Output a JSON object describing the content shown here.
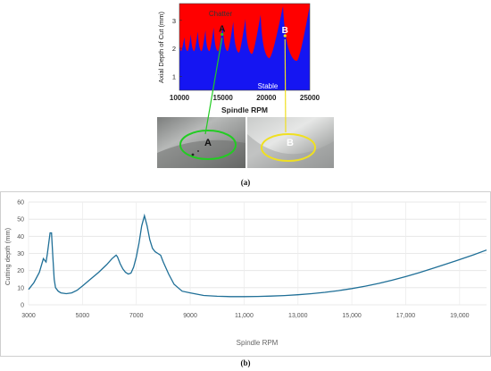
{
  "panel_a": {
    "caption": "(a)",
    "photo_labels": [
      "A",
      "B"
    ],
    "chart": {
      "type": "area",
      "xlabel": "Spindle RPM",
      "ylabel": "Axial Depth of Cut (mm)",
      "xlim": [
        10000,
        25000
      ],
      "ylim": [
        0.5,
        3.6
      ],
      "x_ticks": [
        "10000",
        "15000",
        "20000",
        "25000"
      ],
      "x_tick_values": [
        10000,
        15000,
        20000,
        25000
      ],
      "y_ticks": [
        "1",
        "2",
        "3"
      ],
      "y_tick_values": [
        1,
        2,
        3
      ],
      "region_labels": {
        "upper": "Chatter",
        "lower": "Stable"
      },
      "colors": {
        "chatter": "#ff0000",
        "stable": "#1515f2"
      },
      "point_labels": [
        "A",
        "B"
      ],
      "points": [
        {
          "label": "A",
          "x": 14900,
          "y": 2.5,
          "color": "#22cc22"
        },
        {
          "label": "B",
          "x": 22150,
          "y": 2.45,
          "color": "#f0e020"
        }
      ],
      "lobe_minima_rpm": [
        10200,
        10950,
        11700,
        12550,
        13450,
        14450,
        15550,
        16850,
        18350,
        20350,
        23500
      ],
      "lobe_minima_depth": [
        1.9,
        1.9,
        1.9,
        1.9,
        1.9,
        1.9,
        1.9,
        1.85,
        1.8,
        1.65,
        1.55
      ],
      "lobe_peak_depth": [
        2.4,
        2.5,
        2.6,
        2.65,
        2.75,
        2.85,
        2.95,
        3.05,
        3.2,
        3.5,
        3.5
      ]
    }
  },
  "panel_b": {
    "caption": "(b)",
    "chart": {
      "type": "line",
      "xlabel": "Spindle RPM",
      "ylabel": "Cutting depth (mm)",
      "xlim": [
        3000,
        20000
      ],
      "ylim": [
        0,
        60
      ],
      "x_ticks": [
        "3000",
        "5000",
        "7000",
        "9000",
        "11,000",
        "13,000",
        "15,000",
        "17,000",
        "19,000"
      ],
      "x_tick_values": [
        3000,
        5000,
        7000,
        9000,
        11000,
        13000,
        15000,
        17000,
        19000
      ],
      "y_ticks": [
        "0",
        "10",
        "20",
        "30",
        "40",
        "50",
        "60"
      ],
      "y_tick_values": [
        0,
        10,
        20,
        30,
        40,
        50,
        60
      ],
      "grid": true,
      "color": "#1f6f97",
      "x": [
        3000,
        3200,
        3400,
        3550,
        3650,
        3700,
        3800,
        3850,
        3900,
        3950,
        4000,
        4100,
        4200,
        4400,
        4600,
        4800,
        5000,
        5300,
        5600,
        5900,
        6100,
        6250,
        6300,
        6400,
        6500,
        6600,
        6700,
        6800,
        6900,
        7000,
        7100,
        7200,
        7300,
        7400,
        7450,
        7500,
        7600,
        7700,
        7800,
        7900,
        8000,
        8200,
        8400,
        8700,
        9000,
        9500,
        10000,
        10500,
        11000,
        11500,
        12000,
        12500,
        13000,
        13500,
        14000,
        14500,
        15000,
        15500,
        16000,
        16500,
        17000,
        17500,
        18000,
        18500,
        19000,
        19500,
        20000
      ],
      "y": [
        9,
        13,
        19,
        27,
        25,
        30,
        42,
        42,
        28,
        15,
        10,
        8,
        7,
        6.5,
        7,
        8.5,
        11,
        15,
        19,
        23.5,
        27,
        29,
        28,
        24,
        21,
        19,
        18,
        18.5,
        22,
        28,
        36,
        46,
        52,
        46,
        42,
        38,
        33,
        31,
        30,
        29,
        25,
        18,
        12,
        8,
        7,
        5.5,
        5,
        4.8,
        4.8,
        4.9,
        5.1,
        5.4,
        5.9,
        6.5,
        7.3,
        8.3,
        9.5,
        10.9,
        12.5,
        14.4,
        16.5,
        18.8,
        21.3,
        23.8,
        26.4,
        29.1,
        32
      ]
    }
  }
}
